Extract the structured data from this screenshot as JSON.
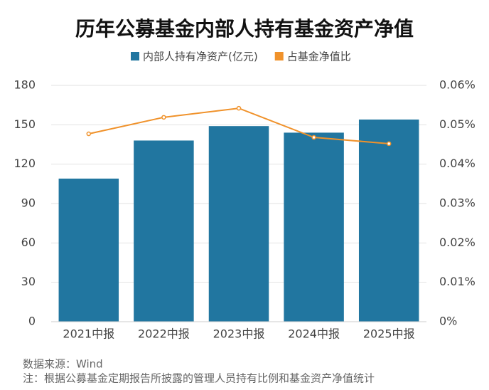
{
  "chart_data": {
    "type": "bar",
    "title": "历年公募基金内部人持有基金资产净值",
    "categories": [
      "2021中报",
      "2022中报",
      "2023中报",
      "2024中报",
      "2025中报"
    ],
    "series": [
      {
        "name": "内部人持有净资产(亿元)",
        "type": "bar",
        "color": "#2176a0",
        "values": [
          109,
          138,
          149,
          144,
          154
        ]
      },
      {
        "name": "占基金净值比",
        "type": "line",
        "axis": "y2",
        "color": "#f0922b",
        "values": [
          0.0477,
          0.0519,
          0.0542,
          0.0468,
          0.0452
        ]
      }
    ],
    "ylim": [
      0,
      180
    ],
    "yticks": [
      0,
      30,
      60,
      90,
      120,
      150,
      180
    ],
    "y2lim": [
      0,
      0.06
    ],
    "y2ticks": [
      {
        "value": 0,
        "label": "0%"
      },
      {
        "value": 0.01,
        "label": "0.01%"
      },
      {
        "value": 0.02,
        "label": "0.02%"
      },
      {
        "value": 0.03,
        "label": "0.03%"
      },
      {
        "value": 0.04,
        "label": "0.04%"
      },
      {
        "value": 0.05,
        "label": "0.05%"
      },
      {
        "value": 0.06,
        "label": "0.06%"
      }
    ],
    "grid": true,
    "source": "数据来源：Wind",
    "note": "注：根据公募基金定期报告所披露的管理人员持有比例和基金资产净值统计"
  }
}
